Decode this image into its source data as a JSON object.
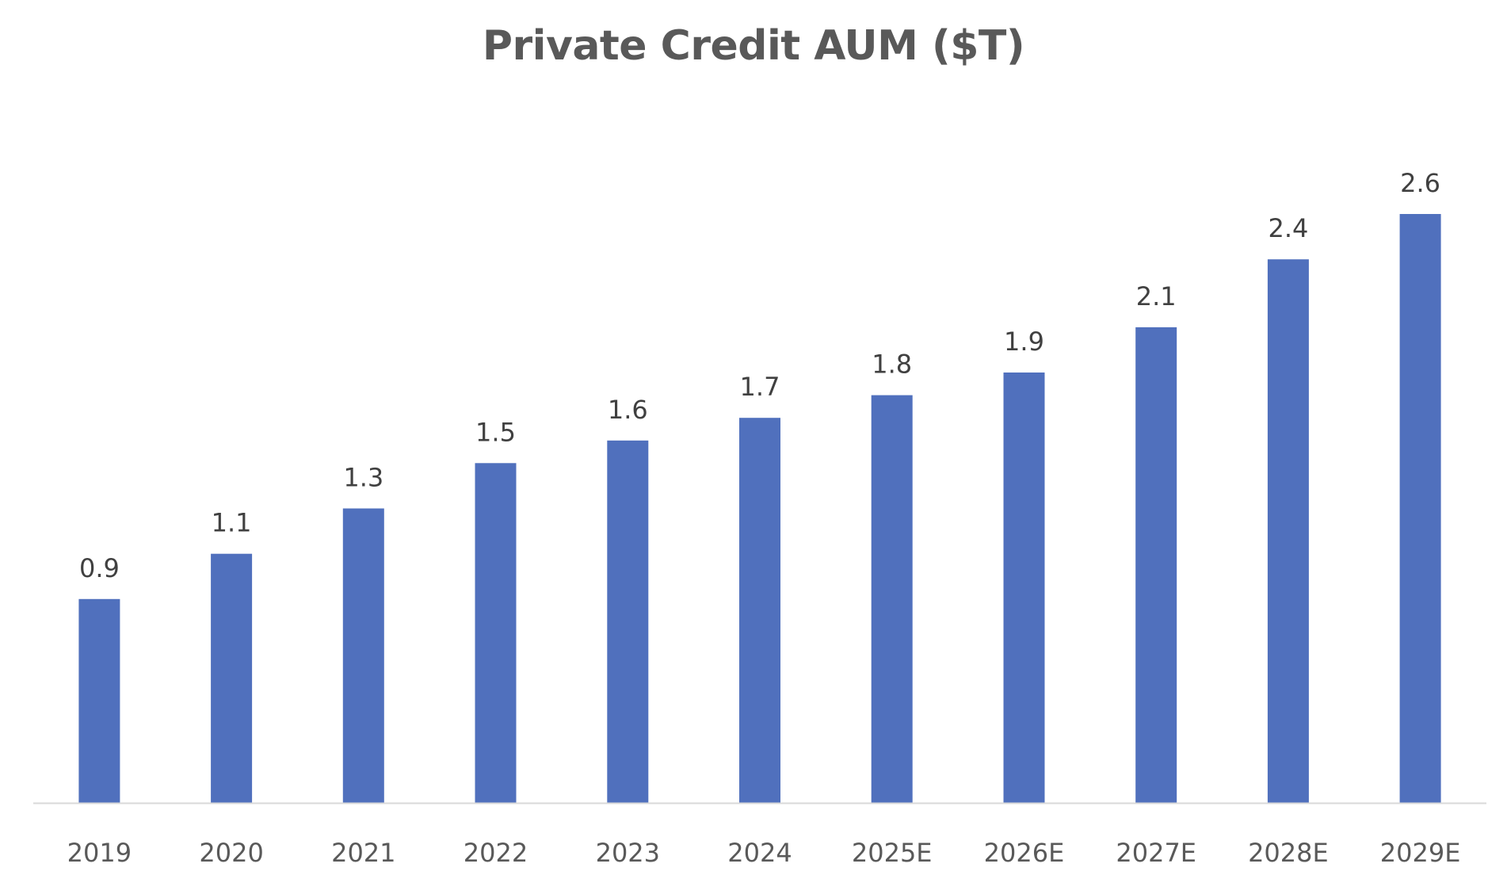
{
  "chart_data": {
    "type": "bar",
    "title": "Private Credit AUM ($T)",
    "xlabel": "",
    "ylabel": "",
    "categories": [
      "2019",
      "2020",
      "2021",
      "2022",
      "2023",
      "2024",
      "2025E",
      "2026E",
      "2027E",
      "2028E",
      "2029E"
    ],
    "values": [
      0.9,
      1.1,
      1.3,
      1.5,
      1.6,
      1.7,
      1.8,
      1.9,
      2.1,
      2.4,
      2.6
    ],
    "ylim": [
      0,
      2.6
    ],
    "grid": false,
    "legend": "none",
    "bar_color": "#5070BD",
    "axis_color": "#D9D9D9",
    "label_color": "#404040",
    "title_color": "#595959"
  }
}
